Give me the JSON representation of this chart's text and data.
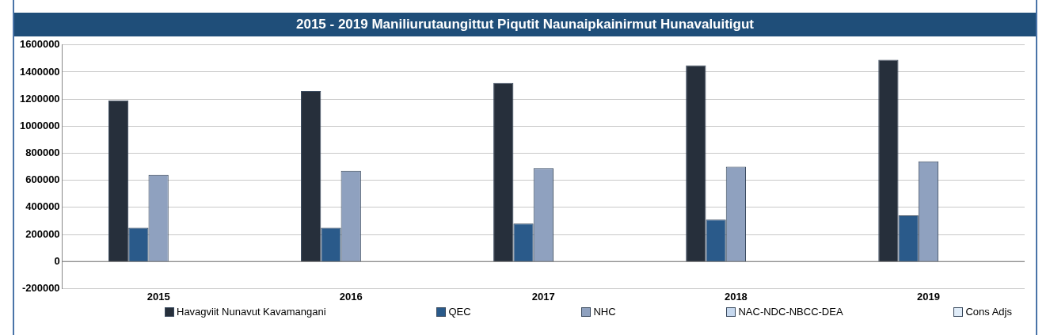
{
  "chart_data": {
    "type": "bar",
    "title": "2015 - 2019 Maniliurutaungittut Piqutit Naunaipkainirmut Hunavaluitigut",
    "categories": [
      "2015",
      "2016",
      "2017",
      "2018",
      "2019"
    ],
    "series": [
      {
        "name": "Havagviit Nunavut Kavamangani",
        "color": "#262f3b",
        "values": [
          1190000,
          1260000,
          1320000,
          1450000,
          1490000
        ]
      },
      {
        "name": "QEC",
        "color": "#2a5a8a",
        "values": [
          250000,
          250000,
          280000,
          310000,
          340000
        ]
      },
      {
        "name": "NHC",
        "color": "#8fa1bf",
        "values": [
          640000,
          670000,
          690000,
          700000,
          740000
        ]
      },
      {
        "name": "NAC-NDC-NBCC-DEA",
        "color": "#c6d8ee",
        "values": [
          0,
          0,
          0,
          0,
          0
        ]
      },
      {
        "name": "Cons Adjs",
        "color": "#e0ecf8",
        "values": [
          0,
          0,
          0,
          0,
          0
        ]
      }
    ],
    "ylim": [
      -200000,
      1600000
    ],
    "yticks": [
      -200000,
      0,
      200000,
      400000,
      600000,
      800000,
      1000000,
      1200000,
      1400000,
      1600000
    ],
    "grid": "y",
    "legend": "bottom"
  }
}
